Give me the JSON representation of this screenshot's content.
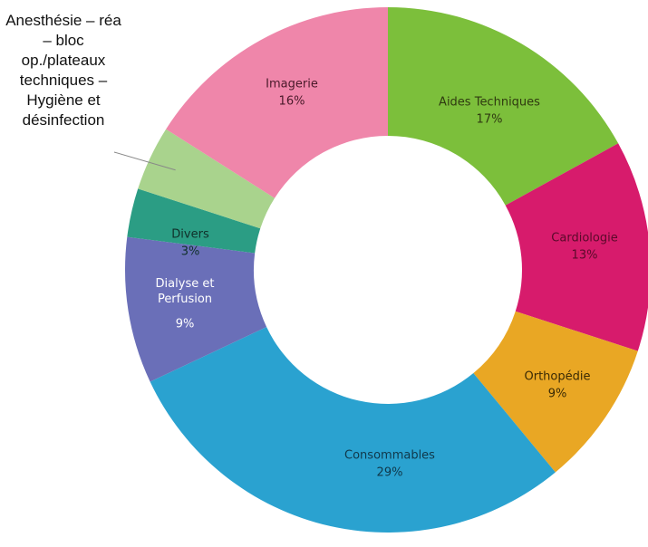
{
  "chart_data": {
    "type": "donut",
    "categories": [
      "Aides Techniques",
      "Cardiologie",
      "Orthopédie",
      "Consommables",
      "Dialyse et Perfusion",
      "Divers",
      "Anesthésie – réa – bloc op./plateaux techniques – Hygiène et désinfection",
      "Imagerie"
    ],
    "values": [
      17,
      13,
      9,
      29,
      9,
      3,
      4,
      16
    ],
    "value_labels": [
      "17%",
      "13%",
      "9%",
      "29%",
      "9%",
      "3%",
      null,
      "16%"
    ],
    "colors": [
      "#7cbf3b",
      "#d71b6c",
      "#e9a724",
      "#2aa2d0",
      "#6a6fb8",
      "#2b9d84",
      "#a9d38d",
      "#ef86aa"
    ]
  }
}
